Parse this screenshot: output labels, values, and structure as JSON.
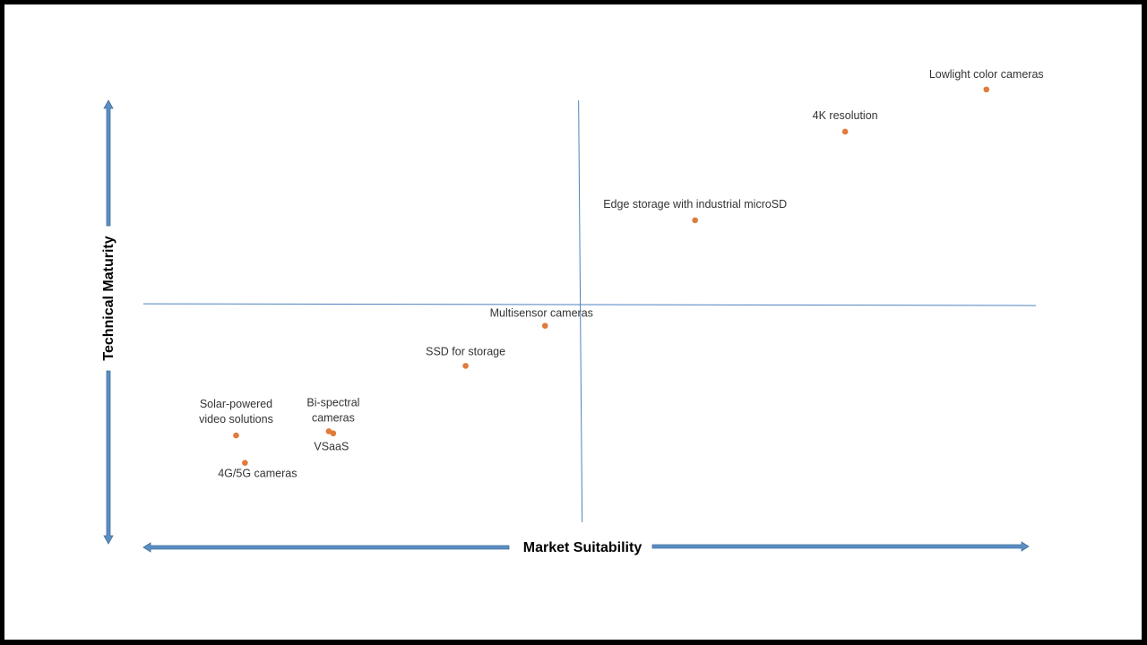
{
  "colors": {
    "frame": "#000000",
    "background": "#ffffff",
    "axis_arrow_fill": "#5b8ec4",
    "axis_arrow_stroke": "#41719c",
    "quadrant_line": "#4f81bd",
    "point": "#e07b39",
    "label_text": "#333333"
  },
  "chart_data": {
    "type": "scatter",
    "title": "",
    "xlabel": "Market Suitability",
    "ylabel": "Technical Maturity",
    "xlim": [
      0,
      100
    ],
    "ylim": [
      0,
      100
    ],
    "quadrant_divider": {
      "x": 49,
      "y": 52
    },
    "grid": false,
    "legend": "none",
    "points": [
      {
        "label": "Lowlight color cameras",
        "x": 95,
        "y": 103
      },
      {
        "label": "4K resolution",
        "x": 79,
        "y": 93
      },
      {
        "label": "Edge storage with industrial microSD",
        "x": 62,
        "y": 72
      },
      {
        "label": "Multisensor cameras",
        "x": 45,
        "y": 47
      },
      {
        "label": "SSD for storage",
        "x": 36,
        "y": 37.5
      },
      {
        "label": "Solar-powered video solutions",
        "x": 10,
        "y": 21
      },
      {
        "label": "Bi-spectral cameras",
        "x": 20.5,
        "y": 22
      },
      {
        "label": "VSaaS",
        "x": 21,
        "y": 21.5
      },
      {
        "label": "4G/5G cameras",
        "x": 11,
        "y": 14.5
      }
    ]
  }
}
